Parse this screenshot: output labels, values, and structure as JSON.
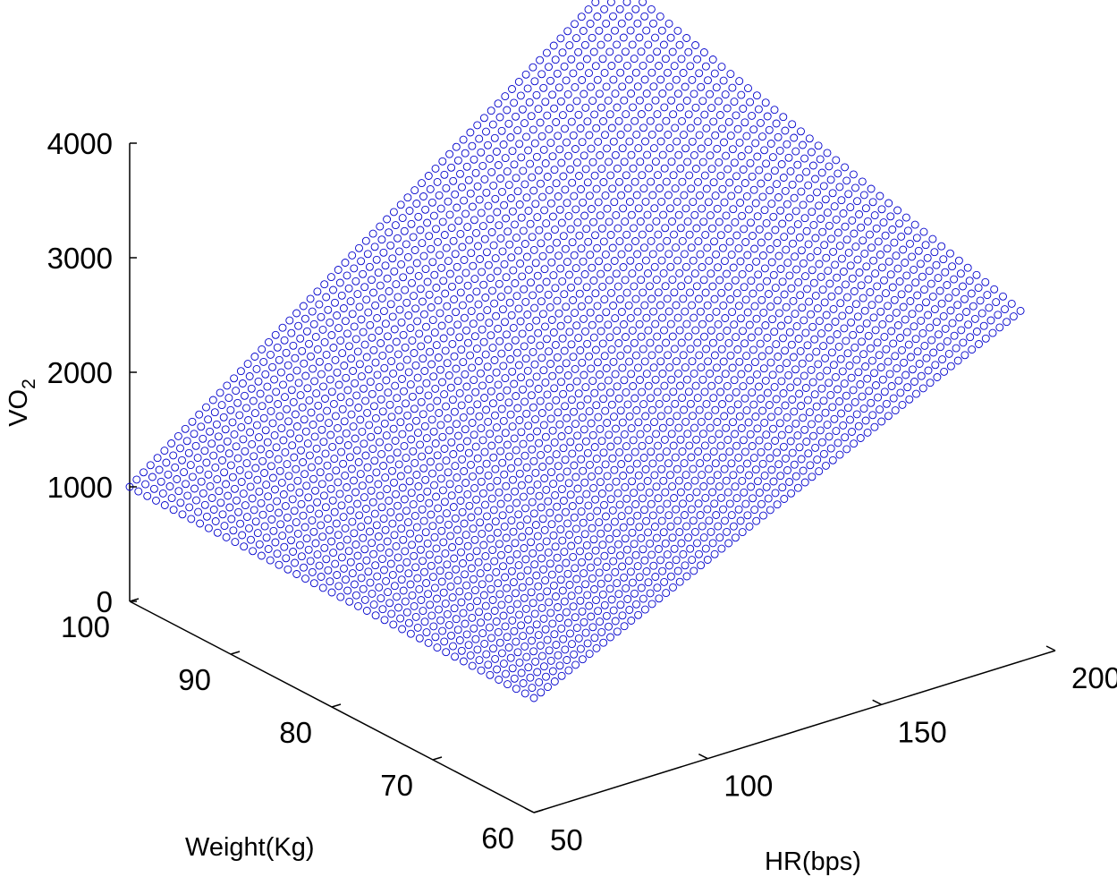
{
  "chart_data": {
    "type": "scatter3d",
    "title": "",
    "xlabel": "HR(bps)",
    "ylabel": "Weight(Kg)",
    "zlabel_main": "VO",
    "zlabel_sub": "2",
    "xlim": [
      50,
      200
    ],
    "ylim": [
      60,
      100
    ],
    "zlim": [
      0,
      4000
    ],
    "x_ticks": [
      "50",
      "100",
      "150",
      "200"
    ],
    "y_ticks": [
      "60",
      "70",
      "80",
      "90",
      "100"
    ],
    "z_ticks": [
      "0",
      "1000",
      "2000",
      "3000",
      "4000"
    ],
    "marker": "open-circle",
    "color": "#0000cc",
    "surface_corners": [
      {
        "hr": 50,
        "weight": 100,
        "vo2": 1000
      },
      {
        "hr": 50,
        "weight": 60,
        "vo2": 1000
      },
      {
        "hr": 190,
        "weight": 100,
        "vo2": 4100
      },
      {
        "hr": 190,
        "weight": 60,
        "vo2": 3060
      }
    ],
    "grid": false
  }
}
